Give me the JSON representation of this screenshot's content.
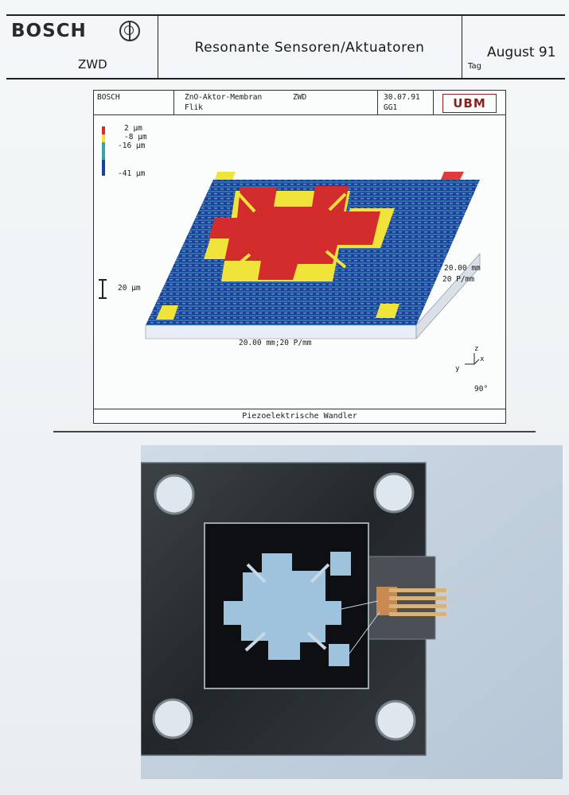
{
  "header": {
    "brand": "BOSCH",
    "department": "ZWD",
    "title": "Resonante Sensoren/Aktuatoren",
    "date": "August 91",
    "date_label": "Tag"
  },
  "plot": {
    "brand": "BOSCH",
    "subject_line1": "ZnO-Aktor-Membran",
    "subject_line2": "Flik",
    "department": "ZWD",
    "date": "30.07.91",
    "code": "GG1",
    "logo_text": "UBM",
    "legend": [
      "2 µm",
      "-8 µm",
      "-16 µm",
      "-41 µm"
    ],
    "legend_colors": [
      "#d22c2c",
      "#f0e33a",
      "#3aa2a8",
      "#1f3f9e"
    ],
    "scale_bar": "20 µm",
    "y_axis": "20.00 mm",
    "y_resolution": "20 P/mm",
    "x_axis": "20.00 mm;20 P/mm",
    "axes": {
      "z": "z",
      "y": "y",
      "x": "x"
    },
    "angle": "90°",
    "caption": "Piezoelektrische Wandler"
  },
  "photo": {
    "colors": {
      "base": "#2d3135",
      "chip": "#0d0f12",
      "membrane": "#9fc3dd"
    }
  }
}
